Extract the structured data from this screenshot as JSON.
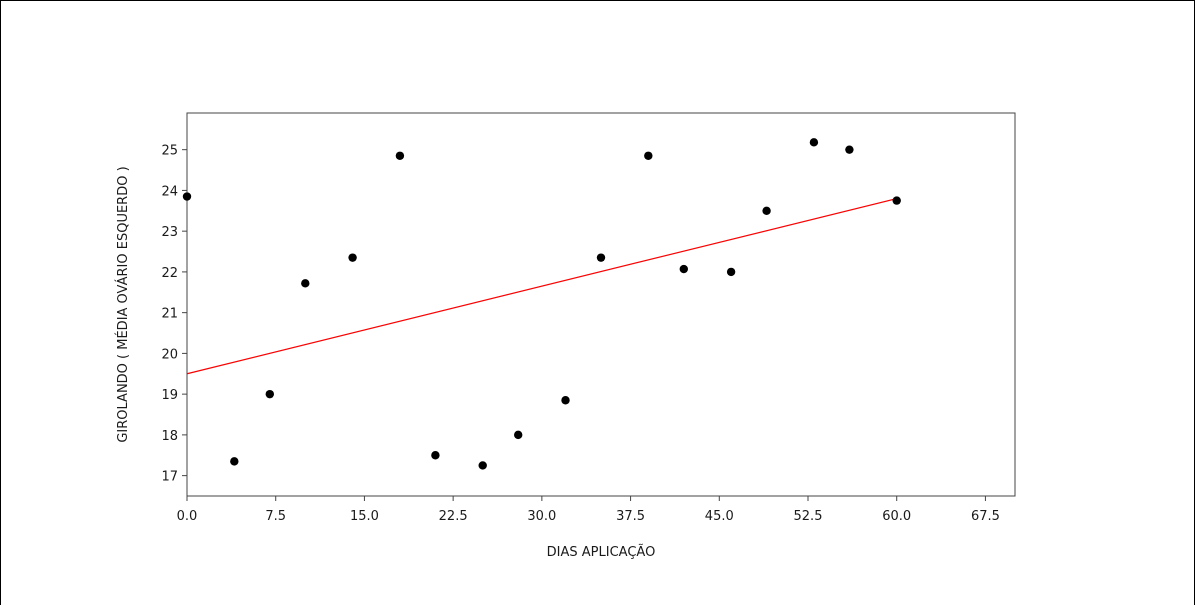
{
  "header_fragment": "",
  "chart_data": {
    "type": "scatter",
    "title": "",
    "xlabel": "DIAS APLICAÇÃO",
    "ylabel": "GIROLANDO ( MÉDIA OVÁRIO ESQUERDO )",
    "xlim": [
      0,
      70
    ],
    "ylim": [
      16.5,
      25.9
    ],
    "x_ticks": [
      "0.0",
      "7.5",
      "15.0",
      "22.5",
      "30.0",
      "37.5",
      "45.0",
      "52.5",
      "60.0",
      "67.5"
    ],
    "x_tick_values": [
      0,
      7.5,
      15,
      22.5,
      30,
      37.5,
      45,
      52.5,
      60,
      67.5
    ],
    "y_ticks": [
      "17",
      "18",
      "19",
      "20",
      "21",
      "22",
      "23",
      "24",
      "25"
    ],
    "y_tick_values": [
      17,
      18,
      19,
      20,
      21,
      22,
      23,
      24,
      25
    ],
    "grid": false,
    "points": [
      {
        "x": 0,
        "y": 23.85
      },
      {
        "x": 4,
        "y": 17.35
      },
      {
        "x": 7,
        "y": 19.0
      },
      {
        "x": 10,
        "y": 21.72
      },
      {
        "x": 14,
        "y": 22.35
      },
      {
        "x": 18,
        "y": 24.85
      },
      {
        "x": 21,
        "y": 17.5
      },
      {
        "x": 25,
        "y": 17.25
      },
      {
        "x": 28,
        "y": 18.0
      },
      {
        "x": 32,
        "y": 18.85
      },
      {
        "x": 35,
        "y": 22.35
      },
      {
        "x": 39,
        "y": 24.85
      },
      {
        "x": 42,
        "y": 22.07
      },
      {
        "x": 46,
        "y": 22.0
      },
      {
        "x": 49,
        "y": 23.5
      },
      {
        "x": 53,
        "y": 25.18
      },
      {
        "x": 56,
        "y": 25.0
      },
      {
        "x": 60,
        "y": 23.75
      }
    ],
    "trendline": {
      "x": [
        0,
        60
      ],
      "y": [
        19.5,
        23.8
      ],
      "color": "#ff0000"
    },
    "point_color": "#000000"
  }
}
